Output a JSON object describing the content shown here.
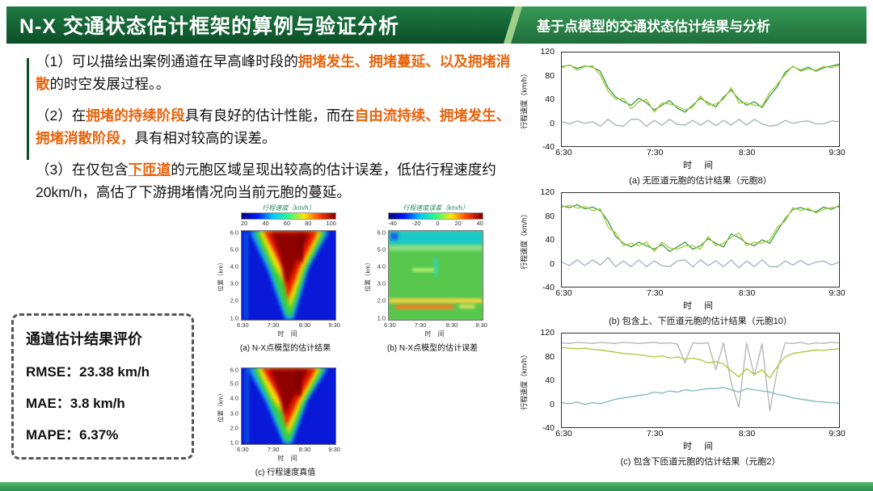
{
  "header": {
    "title": "N-X 交通状态估计框架的算例与验证分析",
    "subtitle": "基于点模型的交通状态估计结果与分析"
  },
  "colors": {
    "header_dark_green": "#0b4f27",
    "header_green": "#2e8b50",
    "divider_light_green": "#9fd08a",
    "highlight_orange": "#e8630c",
    "bottom_bar_green": "#3da35a"
  },
  "notes": {
    "p1": [
      "（1）可以描绘出案例通道在早高峰时段的",
      "拥堵发生、拥堵蔓延、以及拥堵消散",
      "的时空发展过程。。"
    ],
    "p2": [
      "（2）在",
      "拥堵的持续阶段",
      "具有良好的估计性能，而在",
      "自由流持续、拥堵发生、拥堵消散阶段，",
      "具有相对较高的误差。"
    ],
    "p3": [
      "（3）在仅包含",
      "下匝道",
      "的元胞区域呈现出较高的估计误差，低估行程速度约20km/h，高估了下游拥堵情况向当前元胞的蔓延。"
    ]
  },
  "metrics": {
    "title": "通道估计结果评价",
    "items": [
      {
        "label": "RMSE：",
        "value": "23.38 km/h"
      },
      {
        "label": "MAE：",
        "value": "3.8 km/h"
      },
      {
        "label": "MAPE：",
        "value": "6.37%"
      }
    ]
  },
  "chart_data": {
    "heatmaps": [
      {
        "type": "heatmap",
        "caption": "(a) N-X点模型的估计结果",
        "colorbar_title": "行程速度（km/h）",
        "colorbar_ticks": [
          "20",
          "40",
          "60",
          "80",
          "100"
        ],
        "colorbar_colors": [
          "#00007f",
          "#0018ff",
          "#00c8ff",
          "#2aff80",
          "#ffe600",
          "#ff3c00",
          "#7f0000"
        ],
        "ylabel": "位置（km）",
        "yticks": [
          "6.0",
          "5.0",
          "4.0",
          "3.0",
          "2.0",
          "1.0"
        ],
        "xticks": [
          "6:30",
          "7:30",
          "8:30",
          "9:30"
        ],
        "xlabel": "时 间"
      },
      {
        "type": "heatmap",
        "caption": "(b) N-X点模型的估计误差",
        "colorbar_title": "行程速度误差（km/h）",
        "colorbar_ticks": [
          "-40",
          "-20",
          "0",
          "20",
          "40"
        ],
        "colorbar_colors": [
          "#00007f",
          "#0018ff",
          "#00c8ff",
          "#2aff80",
          "#ffe600",
          "#ff3c00",
          "#7f0000"
        ],
        "ylabel": "位置（km）",
        "yticks": [
          "6.0",
          "5.0",
          "4.0",
          "3.0",
          "2.0",
          "1.0"
        ],
        "xticks": [
          "6:30",
          "7:30",
          "8:30",
          "9:30"
        ],
        "xlabel": "时 间"
      },
      {
        "type": "heatmap",
        "caption": "(c) 行程速度真值",
        "ylabel": "位置（km）",
        "yticks": [
          "6.0",
          "5.0",
          "4.0",
          "3.0",
          "2.0",
          "1.0"
        ],
        "xticks": [
          "6:30",
          "7:30",
          "8:30",
          "9:30"
        ],
        "xlabel": "时 间"
      }
    ],
    "line_charts": [
      {
        "type": "line",
        "caption": "(a) 无匝道元胞的估计结果（元胞8）",
        "ylabel": "行程速度（km/h）",
        "xlabel": "时 间",
        "ylim": [
          -40,
          120
        ],
        "yticks": [
          "120",
          "80",
          "40",
          "0",
          "-40"
        ],
        "xticks": [
          "6:30",
          "7:30",
          "8:30",
          "9:30"
        ],
        "x_range": [
          "6:30",
          "9:30"
        ],
        "series": [
          {
            "name": "green-line",
            "color": "#2f9e44",
            "values": [
              96,
              98,
              93,
              97,
              95,
              88,
              60,
              44,
              36,
              30,
              42,
              34,
              22,
              30,
              38,
              25,
              18,
              30,
              42,
              34,
              27,
              44,
              56,
              40,
              30,
              36,
              26,
              46,
              62,
              86,
              96,
              90,
              95,
              88,
              94,
              97,
              100
            ]
          },
          {
            "name": "yellow-green-line",
            "color": "#a9c938",
            "values": [
              94,
              99,
              90,
              96,
              97,
              82,
              54,
              40,
              42,
              24,
              36,
              40,
              18,
              34,
              32,
              28,
              22,
              26,
              46,
              30,
              32,
              40,
              60,
              34,
              34,
              30,
              28,
              52,
              66,
              82,
              97,
              88,
              92,
              90,
              96,
              94,
              98
            ]
          },
          {
            "name": "gray-line",
            "color": "#9fb4ba",
            "values": [
              2,
              -2,
              3,
              -1,
              2,
              -6,
              6,
              -4,
              -6,
              6,
              6,
              -6,
              4,
              -4,
              6,
              -3,
              -4,
              4,
              -4,
              4,
              -5,
              4,
              -4,
              6,
              -4,
              6,
              -2,
              -6,
              -4,
              4,
              -1,
              2,
              3,
              -2,
              -2,
              3,
              2
            ]
          }
        ]
      },
      {
        "type": "line",
        "caption": "(b) 包含上、下匝道元胞的估计结果（元胞10）",
        "ylabel": "行程速度（km/h）",
        "xlabel": "时 间",
        "ylim": [
          -40,
          120
        ],
        "yticks": [
          "120",
          "80",
          "40",
          "0",
          "-40"
        ],
        "xticks": [
          "6:30",
          "7:30",
          "8:30",
          "9:30"
        ],
        "x_range": [
          "6:30",
          "9:30"
        ],
        "series": [
          {
            "name": "green-line",
            "color": "#2f9e44",
            "values": [
              98,
              95,
              100,
              93,
              96,
              90,
              72,
              46,
              34,
              28,
              36,
              30,
              24,
              32,
              20,
              28,
              36,
              24,
              30,
              42,
              34,
              28,
              50,
              44,
              34,
              30,
              40,
              34,
              56,
              76,
              92,
              95,
              91,
              88,
              96,
              92,
              98
            ]
          },
          {
            "name": "yellow-green-line",
            "color": "#a9c938",
            "values": [
              96,
              99,
              94,
              97,
              90,
              93,
              62,
              52,
              30,
              34,
              30,
              36,
              20,
              36,
              26,
              24,
              30,
              30,
              24,
              46,
              30,
              34,
              44,
              52,
              30,
              36,
              34,
              40,
              62,
              72,
              95,
              90,
              94,
              86,
              92,
              95,
              96
            ]
          },
          {
            "name": "gray-line",
            "color": "#9fb4ba",
            "values": [
              2,
              -4,
              6,
              -4,
              6,
              -3,
              10,
              -6,
              4,
              -6,
              6,
              -6,
              4,
              -4,
              -6,
              4,
              6,
              -6,
              6,
              -4,
              4,
              -6,
              6,
              -8,
              4,
              -6,
              6,
              -6,
              -6,
              4,
              -3,
              5,
              -3,
              2,
              4,
              -3,
              2
            ]
          }
        ]
      },
      {
        "type": "line",
        "caption": "(c) 包含下匝道元胞的估计结果（元胞2）",
        "ylabel": "行程速度（km/h）",
        "xlabel": "时 间",
        "ylim": [
          -40,
          120
        ],
        "yticks": [
          "120",
          "80",
          "40",
          "0",
          "-40"
        ],
        "xticks": [
          "6:30",
          "7:30",
          "8:30",
          "9:30"
        ],
        "x_range": [
          "6:30",
          "9:30"
        ],
        "series": [
          {
            "name": "gray-line",
            "color": "#b3b3b3",
            "values": [
              104,
              103,
              105,
              104,
              103,
              105,
              104,
              103,
              105,
              104,
              103,
              104,
              105,
              103,
              104,
              102,
              70,
              104,
              103,
              104,
              58,
              104,
              36,
              -6,
              104,
              48,
              103,
              -12,
              58,
              104,
              103,
              105,
              102,
              104,
              103,
              105,
              104
            ]
          },
          {
            "name": "yellow-green-line",
            "color": "#a9c938",
            "values": [
              96,
              95,
              94,
              95,
              93,
              92,
              90,
              88,
              86,
              85,
              84,
              82,
              80,
              82,
              78,
              80,
              76,
              78,
              75,
              70,
              72,
              68,
              56,
              46,
              60,
              50,
              58,
              44,
              64,
              80,
              86,
              88,
              90,
              92,
              91,
              93,
              94
            ]
          },
          {
            "name": "teal-line",
            "color": "#7fb6bd",
            "values": [
              2,
              0,
              3,
              -1,
              2,
              0,
              4,
              8,
              10,
              12,
              14,
              16,
              20,
              18,
              22,
              20,
              24,
              22,
              24,
              26,
              26,
              28,
              24,
              20,
              26,
              24,
              22,
              20,
              16,
              14,
              10,
              8,
              6,
              4,
              3,
              2,
              1
            ]
          }
        ]
      }
    ]
  }
}
